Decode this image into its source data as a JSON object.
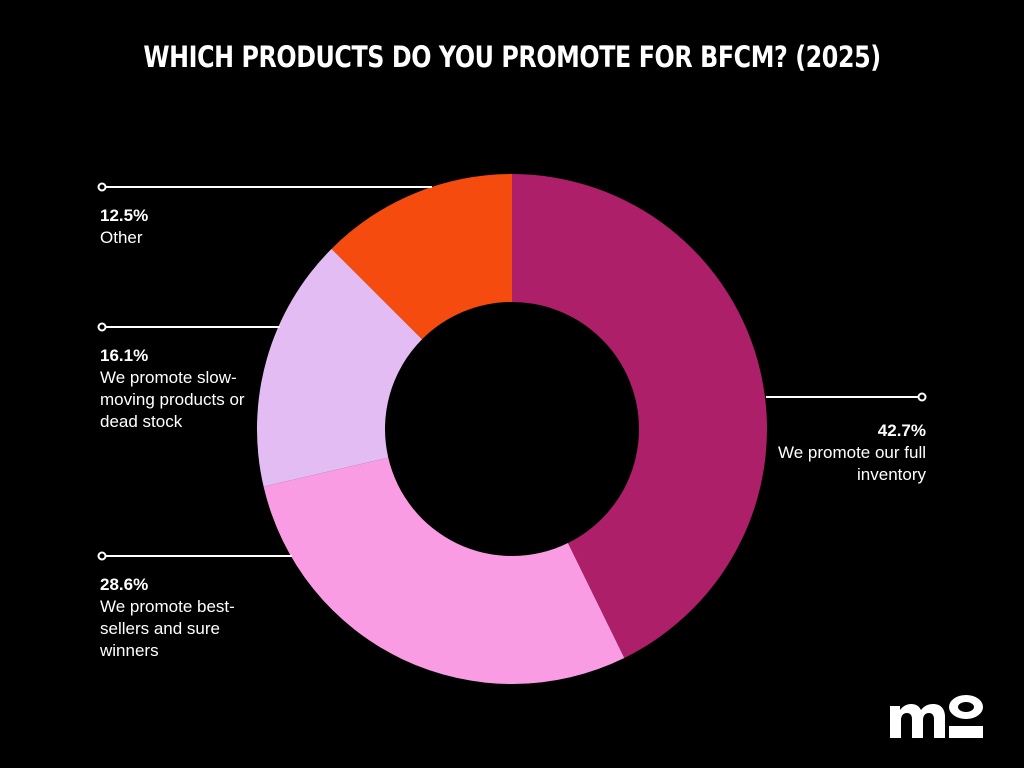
{
  "chart_data": {
    "type": "pie",
    "donut": true,
    "title": "WHICH PRODUCTS DO YOU PROMOTE FOR BFCM? (2025)",
    "slices": [
      {
        "label": "We promote our full inventory",
        "value": 42.7,
        "value_label": "42.7%",
        "color": "#ad1f68",
        "side": "right"
      },
      {
        "label": "We promote best-sellers and sure winners",
        "value": 28.6,
        "value_label": "28.6%",
        "color": "#f99ce3",
        "side": "left"
      },
      {
        "label": "We promote slow-moving products or dead stock",
        "value": 16.1,
        "value_label": "16.1%",
        "color": "#e3bcf3",
        "side": "left"
      },
      {
        "label": "Other",
        "value": 12.5,
        "value_label": "12.5%",
        "color": "#f54b0f",
        "side": "left"
      }
    ],
    "start_angle_deg": 0,
    "direction": "clockwise"
  },
  "logo": {
    "text": "mo",
    "icon": "mo-brand-logo"
  },
  "colors": {
    "background": "#000000",
    "text": "#ffffff",
    "leader": "#ffffff"
  }
}
